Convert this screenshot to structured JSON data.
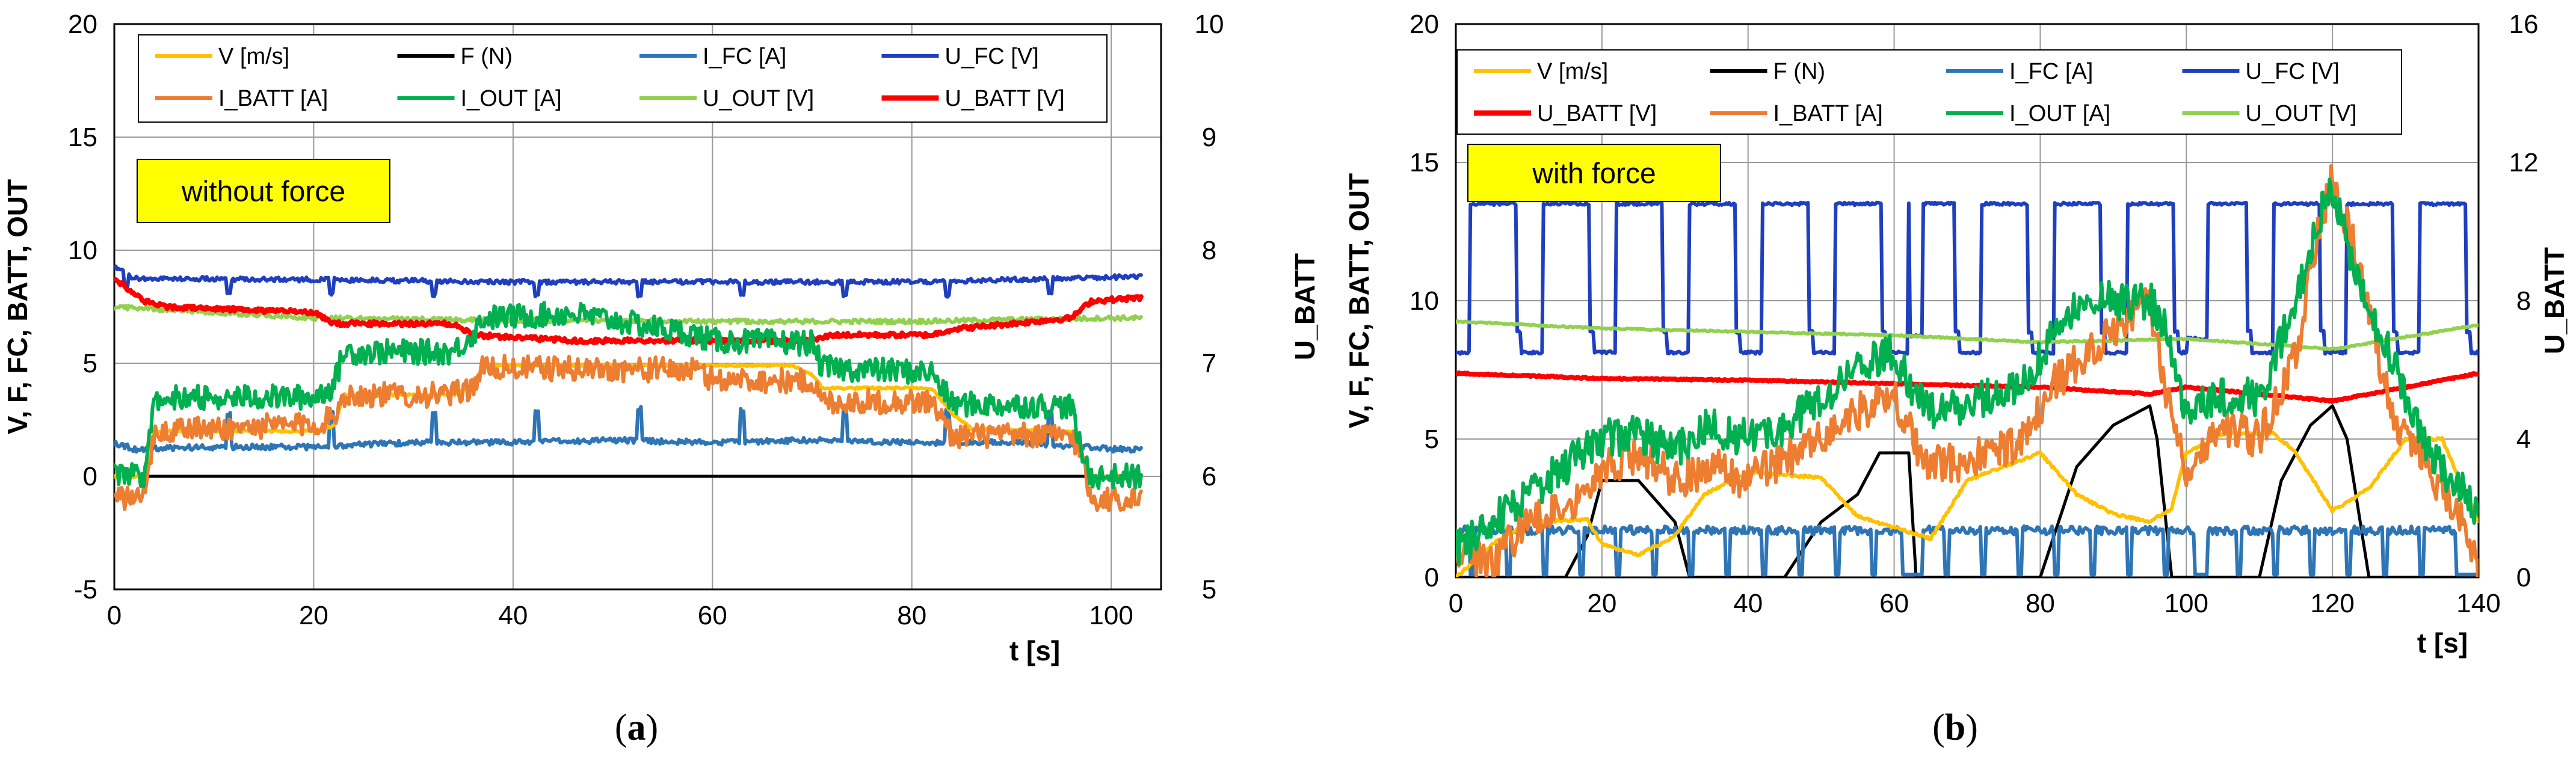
{
  "chart_data": [
    {
      "type": "line",
      "panel_label": "a",
      "annotation": "without force",
      "xlabel": "t [s]",
      "ylabel": "V, F, FC, BATT, OUT",
      "y2label": "U_BATT",
      "xlim": [
        0,
        105
      ],
      "ylim": [
        -5,
        20
      ],
      "y2lim": [
        5,
        10
      ],
      "xticks": [
        0,
        20,
        40,
        60,
        80,
        100
      ],
      "yticks": [
        -5,
        0,
        5,
        10,
        15,
        20
      ],
      "y2ticks": [
        5,
        6,
        7,
        8,
        9,
        10
      ],
      "legend": [
        "V [m/s]",
        "F (N)",
        "I_FC [A]",
        "U_FC [V]",
        "I_BATT [A]",
        "I_OUT [A]",
        "U_OUT [V]",
        "U_BATT [V]"
      ],
      "series": [
        {
          "name": "V [m/s]",
          "color": "#FFC000",
          "axis": "left",
          "x": [
            0,
            3,
            4,
            20,
            22,
            23,
            34,
            36,
            37,
            68,
            70,
            71,
            82,
            84,
            86,
            96,
            97,
            98,
            103
          ],
          "y": [
            0,
            0,
            2,
            2,
            2.2,
            3.6,
            3.6,
            4,
            4.9,
            4.9,
            4.5,
            3.9,
            3.9,
            2.8,
            2.1,
            2,
            1,
            0,
            0
          ]
        },
        {
          "name": "F (N)",
          "color": "#000000",
          "axis": "left",
          "x": [
            0,
            103
          ],
          "y": [
            0,
            0
          ]
        },
        {
          "name": "I_FC [A]",
          "color": "#2E75B6",
          "axis": "left",
          "x": [
            0,
            2,
            10,
            20,
            30,
            40,
            50,
            60,
            70,
            80,
            90,
            97,
            100,
            103
          ],
          "y": [
            1.5,
            1.2,
            1.3,
            1.3,
            1.5,
            1.5,
            1.6,
            1.5,
            1.6,
            1.5,
            1.5,
            1.3,
            1.2,
            1.2
          ]
        },
        {
          "name": "U_FC [V]",
          "color": "#1F3FBF",
          "axis": "right",
          "x": [
            0,
            2,
            20,
            40,
            60,
            80,
            96,
            103
          ],
          "y": [
            7.85,
            7.75,
            7.74,
            7.72,
            7.72,
            7.72,
            7.75,
            7.77
          ]
        },
        {
          "name": "I_BATT [A]",
          "color": "#ED7D31",
          "axis": "left",
          "x": [
            0,
            3,
            4,
            20,
            22,
            23,
            34,
            36,
            37,
            58,
            60,
            70,
            71,
            82,
            84,
            96,
            97,
            98,
            103
          ],
          "y": [
            -1,
            -1,
            2,
            2.3,
            2.6,
            3.6,
            3.6,
            4,
            4.8,
            4.7,
            4.3,
            4.2,
            3.3,
            3.3,
            1.8,
            1.8,
            1,
            -1,
            -1
          ]
        },
        {
          "name": "I_OUT [A]",
          "color": "#00B050",
          "axis": "left",
          "x": [
            0,
            3,
            4,
            20,
            22,
            23,
            34,
            36,
            37,
            46,
            58,
            60,
            70,
            71,
            82,
            84,
            96,
            97,
            98,
            103
          ],
          "y": [
            0,
            0,
            3.5,
            3.5,
            4,
            5.5,
            5.5,
            6.3,
            7,
            7.2,
            6.3,
            6,
            5.9,
            4.8,
            4.6,
            3.2,
            3.1,
            1,
            0,
            0
          ]
        },
        {
          "name": "U_OUT [V]",
          "color": "#92D050",
          "axis": "right",
          "x": [
            0,
            10,
            20,
            40,
            60,
            80,
            100,
            103
          ],
          "y": [
            7.5,
            7.45,
            7.4,
            7.38,
            7.37,
            7.37,
            7.4,
            7.4
          ]
        },
        {
          "name": "U_BATT [V]",
          "color": "#FF0000",
          "axis": "right",
          "x": [
            0,
            3,
            5,
            20,
            22,
            34,
            36,
            46,
            58,
            60,
            70,
            72,
            82,
            84,
            96,
            98,
            103
          ],
          "y": [
            7.75,
            7.55,
            7.5,
            7.45,
            7.35,
            7.35,
            7.25,
            7.2,
            7.2,
            7.2,
            7.2,
            7.25,
            7.25,
            7.3,
            7.4,
            7.55,
            7.58
          ]
        }
      ]
    },
    {
      "type": "line",
      "panel_label": "b",
      "annotation": "with force",
      "xlabel": "t [s]",
      "ylabel": "V, F, FC, BATT, OUT",
      "y2label": "U_BATT",
      "xlim": [
        0,
        140
      ],
      "ylim": [
        0,
        20
      ],
      "y2lim": [
        0,
        16
      ],
      "xticks": [
        0,
        20,
        40,
        60,
        80,
        100,
        120,
        140
      ],
      "yticks": [
        0,
        5,
        10,
        15,
        20
      ],
      "y2ticks": [
        0,
        4,
        8,
        12,
        16
      ],
      "legend": [
        "V [m/s]",
        "F (N)",
        "I_FC [A]",
        "U_FC [V]",
        "U_BATT [V]",
        "I_BATT [A]",
        "I_OUT [A]",
        "U_OUT [V]"
      ],
      "series": [
        {
          "name": "V [m/s]",
          "color": "#FFC000",
          "axis": "left",
          "x": [
            0,
            5,
            10,
            18,
            20,
            25,
            30,
            34,
            40,
            50,
            55,
            60,
            65,
            70,
            80,
            85,
            90,
            95,
            98,
            100,
            105,
            112,
            115,
            120,
            125,
            130,
            135,
            140
          ],
          "y": [
            0,
            1.2,
            2,
            2.1,
            1.2,
            0.8,
            1.5,
            3,
            3.8,
            3.6,
            2.2,
            1.8,
            1.4,
            3.5,
            4.5,
            3,
            2.3,
            2,
            2.5,
            4.5,
            5.2,
            5.2,
            4.5,
            2.4,
            3.2,
            5,
            5,
            2
          ]
        },
        {
          "name": "F (N)",
          "color": "#000000",
          "axis": "left",
          "x": [
            0,
            15,
            18,
            20,
            25,
            30,
            32,
            45,
            50,
            55,
            58,
            62,
            63,
            80,
            85,
            90,
            95,
            96,
            98,
            110,
            113,
            117,
            120,
            122,
            125,
            140
          ],
          "y": [
            0,
            0,
            1.5,
            3.5,
            3.5,
            2,
            0,
            0,
            2,
            3,
            4.5,
            4.5,
            0,
            0,
            4,
            5.5,
            6.2,
            5,
            0,
            0,
            3.5,
            5.5,
            6.2,
            5,
            0,
            0
          ]
        },
        {
          "name": "I_FC [A]",
          "color": "#2E75B6",
          "axis": "left",
          "x": [
            0,
            5,
            10,
            15,
            20,
            30,
            40,
            50,
            60,
            62,
            64,
            70,
            80,
            90,
            100,
            102,
            104,
            110,
            120,
            125,
            130,
            140
          ],
          "y": [
            1.5,
            1.6,
            1.6,
            1.7,
            1.6,
            1.7,
            1.7,
            1.7,
            1.7,
            0.5,
            1.7,
            1.7,
            1.7,
            1.7,
            1.6,
            0.5,
            1.7,
            1.7,
            1.7,
            1.7,
            1.7,
            0.5
          ]
        },
        {
          "name": "U_FC [V]",
          "color": "#1F3FBF",
          "axis": "right",
          "x": [
            0,
            20,
            40,
            60,
            80,
            100,
            120,
            140
          ],
          "y": [
            7,
            7,
            7,
            7,
            7,
            7,
            7,
            7
          ],
          "note": "square-wave alternation between about 6.4 V and 10.8 V with period of about 10 s"
        },
        {
          "name": "U_BATT [V]",
          "color": "#FF0000",
          "axis": "right",
          "x": [
            0,
            20,
            40,
            60,
            80,
            95,
            100,
            120,
            130,
            140
          ],
          "y": [
            5.9,
            5.75,
            5.7,
            5.6,
            5.5,
            5.3,
            5.5,
            5.1,
            5.5,
            5.9
          ]
        },
        {
          "name": "I_BATT [A]",
          "color": "#ED7D31",
          "axis": "left",
          "x": [
            0,
            5,
            10,
            15,
            20,
            25,
            30,
            35,
            40,
            45,
            50,
            55,
            60,
            62,
            64,
            70,
            78,
            82,
            86,
            90,
            95,
            97,
            100,
            105,
            110,
            115,
            118,
            120,
            123,
            128,
            133,
            138,
            140
          ],
          "y": [
            1,
            0.5,
            2,
            2.5,
            4,
            4.5,
            3.5,
            4,
            3.5,
            4.3,
            5,
            6,
            6.5,
            5.5,
            4,
            4.2,
            5,
            7,
            8,
            9,
            10,
            7,
            4,
            5.5,
            5,
            8,
            12.5,
            14.5,
            12,
            6,
            4,
            2,
            0
          ]
        },
        {
          "name": "I_OUT [A]",
          "color": "#00B050",
          "axis": "left",
          "x": [
            0,
            5,
            10,
            15,
            20,
            25,
            30,
            35,
            40,
            45,
            50,
            55,
            60,
            62,
            65,
            70,
            78,
            82,
            86,
            90,
            95,
            97,
            100,
            105,
            110,
            115,
            118,
            120,
            123,
            128,
            133,
            138,
            140
          ],
          "y": [
            1,
            2,
            3,
            4,
            5,
            5.2,
            4.5,
            5.5,
            5,
            5.5,
            6.5,
            7.5,
            8.2,
            7,
            6,
            6.2,
            7,
            9,
            10,
            10,
            10,
            9,
            6,
            6.5,
            6.5,
            10,
            13,
            14,
            11,
            8,
            4.5,
            3,
            2
          ]
        },
        {
          "name": "U_OUT [V]",
          "color": "#92D050",
          "axis": "right",
          "x": [
            0,
            20,
            40,
            60,
            80,
            100,
            120,
            140
          ],
          "y": [
            7.4,
            7.2,
            7.1,
            7,
            6.8,
            6.9,
            6.6,
            7.3
          ]
        }
      ]
    }
  ]
}
